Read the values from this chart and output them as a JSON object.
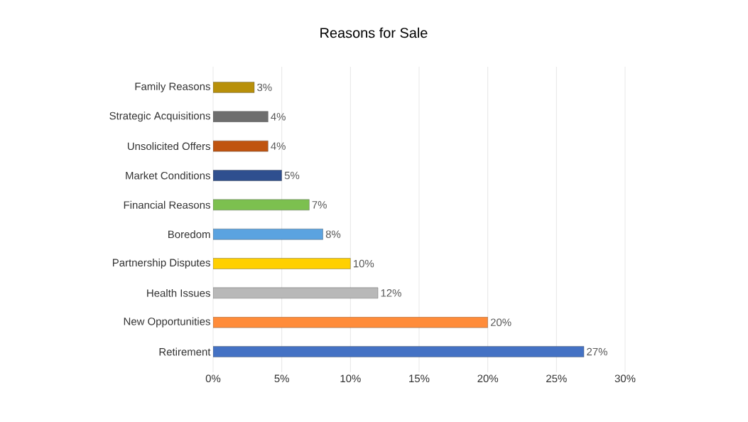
{
  "chart_data": {
    "type": "bar",
    "orientation": "horizontal",
    "title": "Reasons for Sale",
    "categories": [
      "Family Reasons",
      "Strategic Acquisitions",
      "Unsolicited Offers",
      "Market Conditions",
      "Financial Reasons",
      "Boredom",
      "Partnership Disputes",
      "Health Issues",
      "New Opportunities",
      "Retirement"
    ],
    "values": [
      3,
      4,
      4,
      5,
      7,
      8,
      10,
      12,
      20,
      27
    ],
    "value_labels": [
      "3%",
      "4%",
      "4%",
      "5%",
      "7%",
      "8%",
      "10%",
      "12%",
      "20%",
      "27%"
    ],
    "colors": [
      "#b8900a",
      "#6e6e6e",
      "#c0540f",
      "#2f4f8f",
      "#7cc04f",
      "#5ba3e0",
      "#ffd000",
      "#b8b8b8",
      "#ff8c3a",
      "#4472c4"
    ],
    "xlim": [
      0,
      30
    ],
    "xticks": [
      {
        "value": 0,
        "label": "0%"
      },
      {
        "value": 5,
        "label": "5%"
      },
      {
        "value": 10,
        "label": "10%"
      },
      {
        "value": 15,
        "label": "15%"
      },
      {
        "value": 20,
        "label": "20%"
      },
      {
        "value": 25,
        "label": "25%"
      },
      {
        "value": 30,
        "label": "30%"
      }
    ],
    "grid": "x"
  }
}
